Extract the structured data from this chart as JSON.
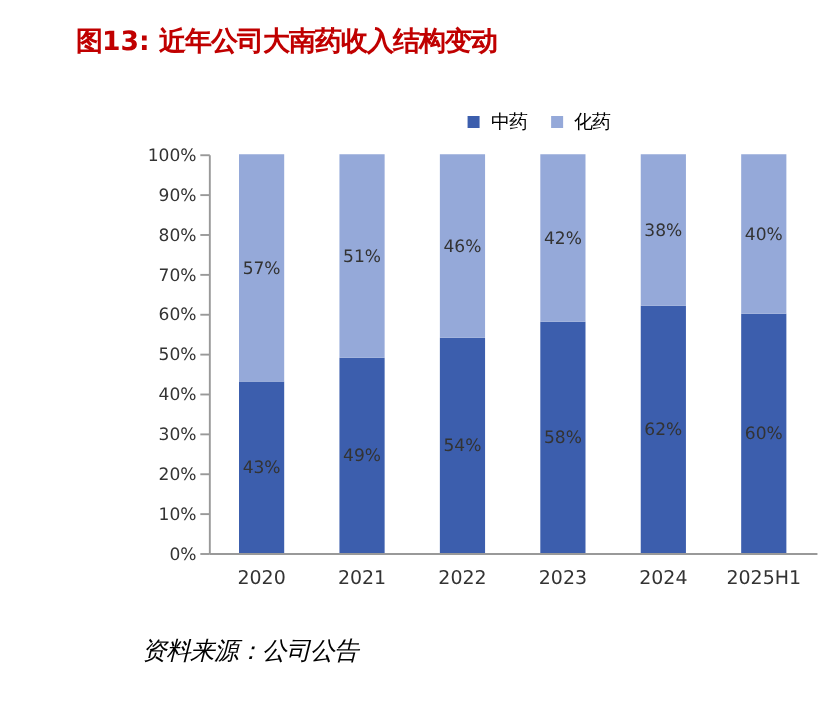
{
  "chart_data": {
    "type": "bar",
    "title": "图13: 近年公司大南药收入结构变动",
    "stacked": true,
    "categories": [
      "2020",
      "2021",
      "2022",
      "2023",
      "2024",
      "2025H1"
    ],
    "series": [
      {
        "name": "中药",
        "color": "#3c5ead",
        "values": [
          43,
          49,
          54,
          58,
          62,
          60
        ],
        "value_labels": [
          "43%",
          "49%",
          "54%",
          "58%",
          "62%",
          "60%"
        ]
      },
      {
        "name": "化药",
        "color": "#95a9d9",
        "values": [
          57,
          51,
          46,
          42,
          38,
          40
        ],
        "value_labels": [
          "57%",
          "51%",
          "46%",
          "42%",
          "38%",
          "40%"
        ]
      }
    ],
    "ylim": [
      0,
      100
    ],
    "yticks": [
      {
        "value": 0,
        "label": "0%"
      },
      {
        "value": 10,
        "label": "10%"
      },
      {
        "value": 20,
        "label": "20%"
      },
      {
        "value": 30,
        "label": "30%"
      },
      {
        "value": 40,
        "label": "40%"
      },
      {
        "value": 50,
        "label": "50%"
      },
      {
        "value": 60,
        "label": "60%"
      },
      {
        "value": 70,
        "label": "70%"
      },
      {
        "value": 80,
        "label": "80%"
      },
      {
        "value": 90,
        "label": "90%"
      },
      {
        "value": 100,
        "label": "100%"
      }
    ],
    "legend": "top right",
    "grid": false,
    "annotations": [
      "资料来源：公司公告"
    ]
  }
}
